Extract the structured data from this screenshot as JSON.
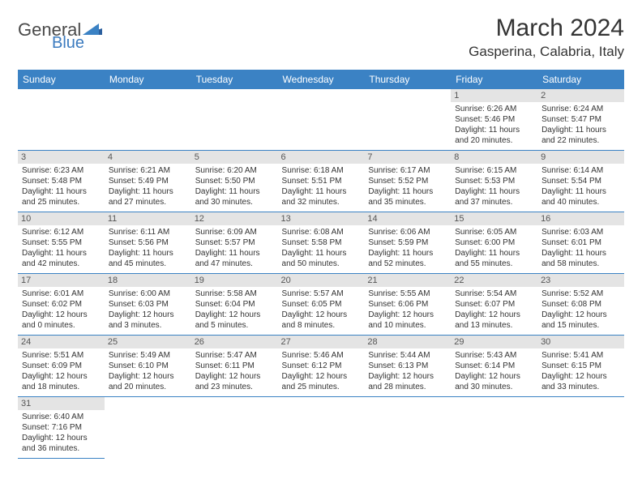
{
  "logo": {
    "general": "General",
    "blue": "Blue"
  },
  "title": "March 2024",
  "location": "Gasperina, Calabria, Italy",
  "colors": {
    "headerBg": "#3b82c4",
    "headerText": "#ffffff",
    "dayBg": "#e4e4e4",
    "border": "#3b82c4"
  },
  "weekdays": [
    "Sunday",
    "Monday",
    "Tuesday",
    "Wednesday",
    "Thursday",
    "Friday",
    "Saturday"
  ],
  "weeks": [
    [
      null,
      null,
      null,
      null,
      null,
      {
        "n": "1",
        "sr": "Sunrise: 6:26 AM",
        "ss": "Sunset: 5:46 PM",
        "dl": "Daylight: 11 hours and 20 minutes."
      },
      {
        "n": "2",
        "sr": "Sunrise: 6:24 AM",
        "ss": "Sunset: 5:47 PM",
        "dl": "Daylight: 11 hours and 22 minutes."
      }
    ],
    [
      {
        "n": "3",
        "sr": "Sunrise: 6:23 AM",
        "ss": "Sunset: 5:48 PM",
        "dl": "Daylight: 11 hours and 25 minutes."
      },
      {
        "n": "4",
        "sr": "Sunrise: 6:21 AM",
        "ss": "Sunset: 5:49 PM",
        "dl": "Daylight: 11 hours and 27 minutes."
      },
      {
        "n": "5",
        "sr": "Sunrise: 6:20 AM",
        "ss": "Sunset: 5:50 PM",
        "dl": "Daylight: 11 hours and 30 minutes."
      },
      {
        "n": "6",
        "sr": "Sunrise: 6:18 AM",
        "ss": "Sunset: 5:51 PM",
        "dl": "Daylight: 11 hours and 32 minutes."
      },
      {
        "n": "7",
        "sr": "Sunrise: 6:17 AM",
        "ss": "Sunset: 5:52 PM",
        "dl": "Daylight: 11 hours and 35 minutes."
      },
      {
        "n": "8",
        "sr": "Sunrise: 6:15 AM",
        "ss": "Sunset: 5:53 PM",
        "dl": "Daylight: 11 hours and 37 minutes."
      },
      {
        "n": "9",
        "sr": "Sunrise: 6:14 AM",
        "ss": "Sunset: 5:54 PM",
        "dl": "Daylight: 11 hours and 40 minutes."
      }
    ],
    [
      {
        "n": "10",
        "sr": "Sunrise: 6:12 AM",
        "ss": "Sunset: 5:55 PM",
        "dl": "Daylight: 11 hours and 42 minutes."
      },
      {
        "n": "11",
        "sr": "Sunrise: 6:11 AM",
        "ss": "Sunset: 5:56 PM",
        "dl": "Daylight: 11 hours and 45 minutes."
      },
      {
        "n": "12",
        "sr": "Sunrise: 6:09 AM",
        "ss": "Sunset: 5:57 PM",
        "dl": "Daylight: 11 hours and 47 minutes."
      },
      {
        "n": "13",
        "sr": "Sunrise: 6:08 AM",
        "ss": "Sunset: 5:58 PM",
        "dl": "Daylight: 11 hours and 50 minutes."
      },
      {
        "n": "14",
        "sr": "Sunrise: 6:06 AM",
        "ss": "Sunset: 5:59 PM",
        "dl": "Daylight: 11 hours and 52 minutes."
      },
      {
        "n": "15",
        "sr": "Sunrise: 6:05 AM",
        "ss": "Sunset: 6:00 PM",
        "dl": "Daylight: 11 hours and 55 minutes."
      },
      {
        "n": "16",
        "sr": "Sunrise: 6:03 AM",
        "ss": "Sunset: 6:01 PM",
        "dl": "Daylight: 11 hours and 58 minutes."
      }
    ],
    [
      {
        "n": "17",
        "sr": "Sunrise: 6:01 AM",
        "ss": "Sunset: 6:02 PM",
        "dl": "Daylight: 12 hours and 0 minutes."
      },
      {
        "n": "18",
        "sr": "Sunrise: 6:00 AM",
        "ss": "Sunset: 6:03 PM",
        "dl": "Daylight: 12 hours and 3 minutes."
      },
      {
        "n": "19",
        "sr": "Sunrise: 5:58 AM",
        "ss": "Sunset: 6:04 PM",
        "dl": "Daylight: 12 hours and 5 minutes."
      },
      {
        "n": "20",
        "sr": "Sunrise: 5:57 AM",
        "ss": "Sunset: 6:05 PM",
        "dl": "Daylight: 12 hours and 8 minutes."
      },
      {
        "n": "21",
        "sr": "Sunrise: 5:55 AM",
        "ss": "Sunset: 6:06 PM",
        "dl": "Daylight: 12 hours and 10 minutes."
      },
      {
        "n": "22",
        "sr": "Sunrise: 5:54 AM",
        "ss": "Sunset: 6:07 PM",
        "dl": "Daylight: 12 hours and 13 minutes."
      },
      {
        "n": "23",
        "sr": "Sunrise: 5:52 AM",
        "ss": "Sunset: 6:08 PM",
        "dl": "Daylight: 12 hours and 15 minutes."
      }
    ],
    [
      {
        "n": "24",
        "sr": "Sunrise: 5:51 AM",
        "ss": "Sunset: 6:09 PM",
        "dl": "Daylight: 12 hours and 18 minutes."
      },
      {
        "n": "25",
        "sr": "Sunrise: 5:49 AM",
        "ss": "Sunset: 6:10 PM",
        "dl": "Daylight: 12 hours and 20 minutes."
      },
      {
        "n": "26",
        "sr": "Sunrise: 5:47 AM",
        "ss": "Sunset: 6:11 PM",
        "dl": "Daylight: 12 hours and 23 minutes."
      },
      {
        "n": "27",
        "sr": "Sunrise: 5:46 AM",
        "ss": "Sunset: 6:12 PM",
        "dl": "Daylight: 12 hours and 25 minutes."
      },
      {
        "n": "28",
        "sr": "Sunrise: 5:44 AM",
        "ss": "Sunset: 6:13 PM",
        "dl": "Daylight: 12 hours and 28 minutes."
      },
      {
        "n": "29",
        "sr": "Sunrise: 5:43 AM",
        "ss": "Sunset: 6:14 PM",
        "dl": "Daylight: 12 hours and 30 minutes."
      },
      {
        "n": "30",
        "sr": "Sunrise: 5:41 AM",
        "ss": "Sunset: 6:15 PM",
        "dl": "Daylight: 12 hours and 33 minutes."
      }
    ],
    [
      {
        "n": "31",
        "sr": "Sunrise: 6:40 AM",
        "ss": "Sunset: 7:16 PM",
        "dl": "Daylight: 12 hours and 36 minutes."
      },
      null,
      null,
      null,
      null,
      null,
      null
    ]
  ]
}
